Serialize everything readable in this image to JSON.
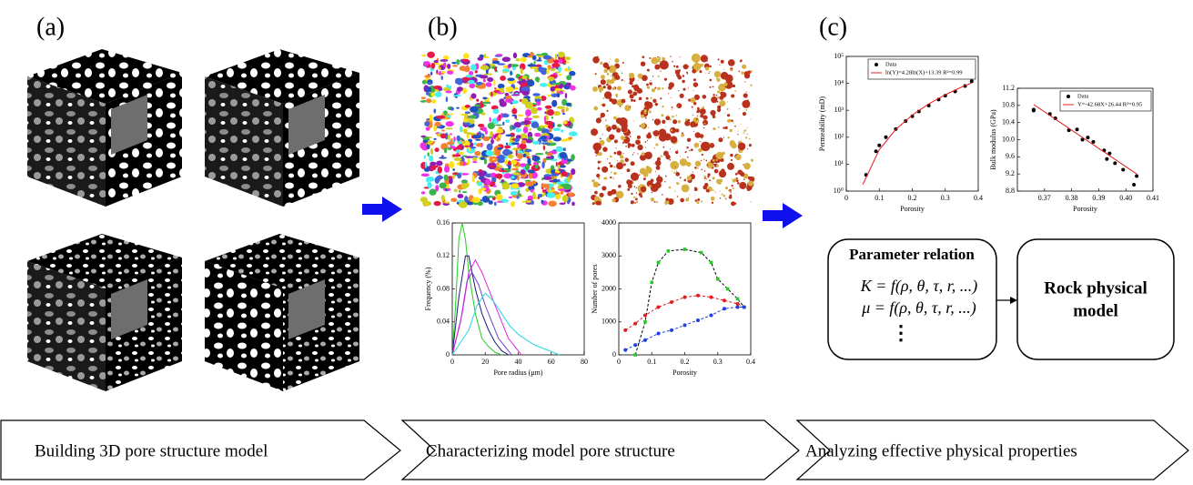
{
  "panels": [
    "(a)",
    "(b)",
    "(c)"
  ],
  "parameter_box": {
    "title": "Parameter relation",
    "lines": [
      "K = f(ρ, θ, τ, r, ...)",
      "μ = f(ρ, θ, τ, r, ...)"
    ],
    "ellipsis": "⋮"
  },
  "model_box": {
    "lines": [
      "Rock physical",
      "model"
    ]
  },
  "steps": [
    "Building 3D pore structure model",
    "Characterizing model pore structure",
    "Analyzing effective physical properties"
  ],
  "chart_data": [
    {
      "type": "line",
      "x_label": "Pore radius (μm)",
      "y_label": "Frequency (%)",
      "xlim": [
        0,
        80
      ],
      "xticks": [
        0,
        20,
        40,
        60,
        80
      ],
      "ylim": [
        0,
        0.16
      ],
      "yticks": [
        0,
        0.04,
        0.08,
        0.12,
        0.16
      ],
      "series": [
        {
          "color": "#22cc22",
          "line": true,
          "x": [
            0,
            2,
            4,
            6,
            8,
            10,
            14,
            18,
            22,
            26,
            30
          ],
          "values": [
            0,
            0.06,
            0.14,
            0.16,
            0.14,
            0.1,
            0.05,
            0.02,
            0.01,
            0.003,
            0
          ]
        },
        {
          "color": "#1a1a7a",
          "line": true,
          "x": [
            0,
            4,
            8,
            10,
            14,
            18,
            22,
            26,
            30,
            34
          ],
          "values": [
            0,
            0.07,
            0.12,
            0.12,
            0.08,
            0.05,
            0.03,
            0.015,
            0.005,
            0
          ]
        },
        {
          "color": "#6a3fd0",
          "line": true,
          "x": [
            0,
            5,
            9,
            12,
            16,
            20,
            24,
            28,
            32,
            36
          ],
          "values": [
            0,
            0.04,
            0.09,
            0.1,
            0.085,
            0.06,
            0.04,
            0.02,
            0.01,
            0
          ]
        },
        {
          "color": "#e020e0",
          "line": true,
          "x": [
            0,
            6,
            10,
            14,
            18,
            22,
            26,
            30,
            34,
            38,
            42
          ],
          "values": [
            0,
            0.05,
            0.1,
            0.115,
            0.1,
            0.08,
            0.06,
            0.04,
            0.02,
            0.01,
            0
          ]
        },
        {
          "color": "#22d8e0",
          "line": true,
          "x": [
            0,
            10,
            15,
            20,
            25,
            30,
            35,
            40,
            45,
            50,
            55,
            60,
            65
          ],
          "values": [
            0,
            0.03,
            0.06,
            0.075,
            0.065,
            0.05,
            0.035,
            0.025,
            0.018,
            0.012,
            0.008,
            0.004,
            0
          ]
        }
      ]
    },
    {
      "type": "line",
      "x_label": "Porosity",
      "y_label": "Number of pores",
      "xlim": [
        0,
        0.4
      ],
      "xticks": [
        0,
        0.1,
        0.2,
        0.3,
        0.4
      ],
      "ylim": [
        0,
        4000
      ],
      "yticks": [
        0,
        1000,
        2000,
        3000,
        4000
      ],
      "series": [
        {
          "color": "#22cc22",
          "line_color": "#000000",
          "line": true,
          "dash": true,
          "marker": "square",
          "x": [
            0.05,
            0.08,
            0.1,
            0.12,
            0.15,
            0.2,
            0.25,
            0.28,
            0.3,
            0.33,
            0.36,
            0.38
          ],
          "values": [
            0,
            1000,
            2200,
            2800,
            3150,
            3200,
            3100,
            2800,
            2300,
            2000,
            1700,
            1450
          ]
        },
        {
          "color": "#e02020",
          "line_color": "#e02020",
          "line": true,
          "dash": true,
          "marker": "circle",
          "x": [
            0.02,
            0.05,
            0.08,
            0.12,
            0.16,
            0.2,
            0.24,
            0.28,
            0.32,
            0.36,
            0.38
          ],
          "values": [
            750,
            950,
            1200,
            1450,
            1600,
            1750,
            1800,
            1750,
            1650,
            1550,
            1450
          ]
        },
        {
          "color": "#2040e0",
          "line_color": "#2040e0",
          "line": true,
          "dash": true,
          "marker": "circle",
          "x": [
            0.02,
            0.05,
            0.08,
            0.12,
            0.16,
            0.2,
            0.24,
            0.28,
            0.32,
            0.36,
            0.38
          ],
          "values": [
            150,
            300,
            450,
            650,
            750,
            900,
            1050,
            1200,
            1400,
            1450,
            1450
          ]
        }
      ]
    },
    {
      "type": "scatter",
      "x_label": "Porosity",
      "y_label": "Permeability (mD)",
      "log_y": true,
      "legend": "upper left",
      "xlim": [
        0,
        0.4
      ],
      "xticks": [
        0,
        0.1,
        0.2,
        0.3,
        0.4
      ],
      "ylim": [
        1,
        100000
      ],
      "yticks": [
        {
          "value": 1,
          "label": "10⁰"
        },
        {
          "value": 10,
          "label": "10¹"
        },
        {
          "value": 100,
          "label": "10²"
        },
        {
          "value": 1000,
          "label": "10³"
        },
        {
          "value": 10000,
          "label": "10⁴"
        },
        {
          "value": 100000,
          "label": "10⁵"
        }
      ],
      "series": [
        {
          "name": "Data",
          "color": "#000000",
          "marker": "circle",
          "x": [
            0.06,
            0.09,
            0.1,
            0.12,
            0.15,
            0.18,
            0.2,
            0.22,
            0.25,
            0.28,
            0.3,
            0.33,
            0.36,
            0.38
          ],
          "values": [
            4,
            30,
            50,
            100,
            200,
            400,
            600,
            900,
            1500,
            2500,
            3500,
            5000,
            8000,
            12000
          ]
        },
        {
          "name": "ln(Y)=4.28ln(X)+13.39 R²=0.99",
          "color": "#e02020",
          "line": true,
          "x": [
            0.05,
            0.1,
            0.15,
            0.2,
            0.25,
            0.3,
            0.35,
            0.38
          ],
          "values": [
            1.76,
            34.3,
            194,
            666,
            1731,
            3779,
            7310,
            10390
          ]
        }
      ]
    },
    {
      "type": "scatter",
      "x_label": "Porosity",
      "y_label": "Bulk modulus (GPa)",
      "legend": "upper right",
      "xlim": [
        0.36,
        0.41
      ],
      "xticks": [
        0.37,
        0.38,
        0.39,
        {
          "value": 0.4,
          "label": "0.40"
        },
        0.41
      ],
      "ylim": [
        8.8,
        11.2
      ],
      "yticks": [
        8.8,
        9.2,
        9.6,
        {
          "value": 10,
          "label": "10.0"
        },
        10.4,
        10.8,
        11.2
      ],
      "series": [
        {
          "name": "Data",
          "color": "#000000",
          "marker": "circle",
          "x": [
            0.366,
            0.366,
            0.372,
            0.374,
            0.379,
            0.382,
            0.384,
            0.386,
            0.388,
            0.392,
            0.393,
            0.394,
            0.396,
            0.399,
            0.403,
            0.404
          ],
          "values": [
            10.7,
            10.68,
            10.6,
            10.5,
            10.22,
            10.24,
            10.0,
            10.05,
            9.95,
            9.75,
            9.55,
            9.68,
            9.45,
            9.3,
            8.95,
            9.15
          ]
        },
        {
          "name": "Y=-42.68X+26.44 R²=0.95",
          "color": "#e02020",
          "line": true,
          "x": [
            0.366,
            0.404
          ],
          "values": [
            10.82,
            9.2
          ]
        }
      ]
    }
  ]
}
